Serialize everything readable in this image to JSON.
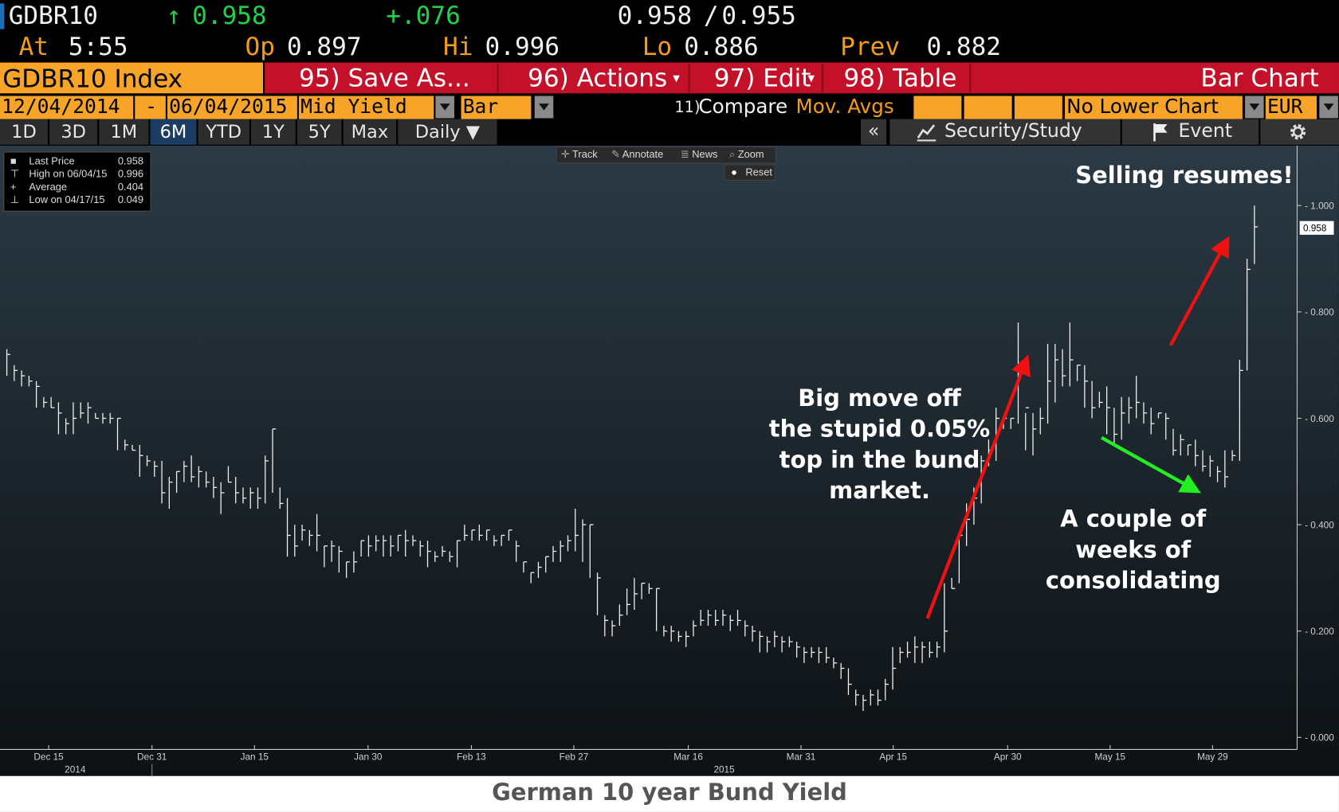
{
  "header": {
    "ticker": "GDBR10",
    "last_arrow": "↑",
    "last": "0.958",
    "change": "+.076",
    "bid_ask_bid": "0.958",
    "bid_ask_sep": "/",
    "bid_ask_ask": "0.955",
    "at_label": "At",
    "at_time": "5:55",
    "op_label": "Op",
    "op_value": "0.897",
    "hi_label": "Hi",
    "hi_value": "0.996",
    "lo_label": "Lo",
    "lo_value": "0.886",
    "prev_label": "Prev",
    "prev_value": "0.882"
  },
  "menu": {
    "security": "GDBR10 Index",
    "save": "95) Save As...",
    "actions": "96) Actions",
    "edit": "97) Edit",
    "table": "98) Table",
    "chart_type_title": "Bar Chart"
  },
  "controls": {
    "start_date": "12/04/2014",
    "dash": "-",
    "end_date": "06/04/2015",
    "field": "Mid Yield",
    "style": "Bar",
    "compare_num": "11)",
    "compare": "Compare",
    "mov_avgs": "Mov. Avgs",
    "lower_chart": "No Lower Chart",
    "currency": "EUR"
  },
  "tabs": [
    "1D",
    "3D",
    "1M",
    "6M",
    "YTD",
    "1Y",
    "5Y",
    "Max",
    "Daily ▼"
  ],
  "toolbar": {
    "collapse": "«",
    "security_study": "Security/Study",
    "event": "Event",
    "track": "Track",
    "annotate": "Annotate",
    "news": "News",
    "zoom": "Zoom",
    "reset": "Reset"
  },
  "legend": {
    "rows": [
      {
        "label": "Last Price",
        "value": "0.958"
      },
      {
        "label": "High on 06/04/15",
        "value": "0.996"
      },
      {
        "label": "Average",
        "value": "0.404"
      },
      {
        "label": "Low on 04/17/15",
        "value": "0.049"
      }
    ]
  },
  "annotations": {
    "big_move": [
      "Big move off",
      "the stupid 0.05%",
      "top in the bund",
      "market."
    ],
    "consolidating": [
      "A couple of",
      "weeks of",
      "consolidating"
    ],
    "selling": "Selling resumes!"
  },
  "caption": "German 10 year Bund Yield",
  "colors": {
    "orange": "#f7a428",
    "red": "#c4112a",
    "green_text": "#22d04a",
    "arrow_red": "#ee1111",
    "arrow_green": "#22ee22"
  },
  "chart_data": {
    "type": "bar",
    "subtype": "ohlc",
    "series_name": "GDBR10 Index",
    "ylim": [
      0,
      1.0
    ],
    "yticks": [
      "1.000",
      "0.800",
      "0.600",
      "0.400",
      "0.200",
      "0.000"
    ],
    "last_price_label": "0.958",
    "xticks": [
      "Dec 15",
      "Dec 31",
      "Jan 15",
      "Jan 30",
      "Feb 13",
      "Feb 27",
      "Mar 16",
      "Mar 31",
      "Apr 15",
      "Apr 30",
      "May 15",
      "May 29"
    ],
    "year_labels": [
      "2014",
      "2015"
    ],
    "bars": [
      [
        0.72,
        0.68,
        0.73
      ],
      [
        0.69,
        0.67,
        0.7
      ],
      [
        0.68,
        0.66,
        0.69
      ],
      [
        0.67,
        0.66,
        0.68
      ],
      [
        0.66,
        0.62,
        0.67
      ],
      [
        0.63,
        0.62,
        0.64
      ],
      [
        0.62,
        0.62,
        0.64
      ],
      [
        0.61,
        0.57,
        0.63
      ],
      [
        0.59,
        0.57,
        0.6
      ],
      [
        0.6,
        0.57,
        0.63
      ],
      [
        0.61,
        0.6,
        0.63
      ],
      [
        0.62,
        0.59,
        0.63
      ],
      [
        0.6,
        0.6,
        0.61
      ],
      [
        0.6,
        0.59,
        0.61
      ],
      [
        0.6,
        0.59,
        0.61
      ],
      [
        0.6,
        0.54,
        0.6
      ],
      [
        0.55,
        0.54,
        0.56
      ],
      [
        0.54,
        0.54,
        0.55
      ],
      [
        0.53,
        0.49,
        0.55
      ],
      [
        0.52,
        0.51,
        0.53
      ],
      [
        0.51,
        0.49,
        0.52
      ],
      [
        0.46,
        0.44,
        0.52
      ],
      [
        0.48,
        0.43,
        0.49
      ],
      [
        0.5,
        0.46,
        0.5
      ],
      [
        0.51,
        0.48,
        0.52
      ],
      [
        0.49,
        0.48,
        0.53
      ],
      [
        0.5,
        0.47,
        0.51
      ],
      [
        0.48,
        0.47,
        0.5
      ],
      [
        0.47,
        0.45,
        0.49
      ],
      [
        0.46,
        0.42,
        0.48
      ],
      [
        0.48,
        0.48,
        0.51
      ],
      [
        0.46,
        0.44,
        0.49
      ],
      [
        0.45,
        0.44,
        0.47
      ],
      [
        0.46,
        0.43,
        0.47
      ],
      [
        0.45,
        0.43,
        0.47
      ],
      [
        0.52,
        0.44,
        0.53
      ],
      [
        0.58,
        0.46,
        0.58
      ],
      [
        0.44,
        0.43,
        0.47
      ],
      [
        0.38,
        0.34,
        0.45
      ],
      [
        0.36,
        0.34,
        0.4
      ],
      [
        0.39,
        0.37,
        0.4
      ],
      [
        0.38,
        0.36,
        0.39
      ],
      [
        0.38,
        0.35,
        0.42
      ],
      [
        0.36,
        0.32,
        0.36
      ],
      [
        0.36,
        0.33,
        0.37
      ],
      [
        0.35,
        0.31,
        0.36
      ],
      [
        0.33,
        0.3,
        0.33
      ],
      [
        0.33,
        0.31,
        0.35
      ],
      [
        0.37,
        0.34,
        0.37
      ],
      [
        0.36,
        0.34,
        0.38
      ],
      [
        0.37,
        0.35,
        0.38
      ],
      [
        0.37,
        0.34,
        0.38
      ],
      [
        0.36,
        0.34,
        0.38
      ],
      [
        0.38,
        0.35,
        0.38
      ],
      [
        0.37,
        0.34,
        0.39
      ],
      [
        0.37,
        0.36,
        0.38
      ],
      [
        0.36,
        0.34,
        0.37
      ],
      [
        0.35,
        0.32,
        0.37
      ],
      [
        0.34,
        0.33,
        0.35
      ],
      [
        0.35,
        0.34,
        0.36
      ],
      [
        0.34,
        0.33,
        0.35
      ],
      [
        0.37,
        0.32,
        0.37
      ],
      [
        0.38,
        0.37,
        0.4
      ],
      [
        0.39,
        0.37,
        0.39
      ],
      [
        0.38,
        0.37,
        0.4
      ],
      [
        0.39,
        0.37,
        0.39
      ],
      [
        0.37,
        0.36,
        0.38
      ],
      [
        0.38,
        0.36,
        0.38
      ],
      [
        0.39,
        0.37,
        0.39
      ],
      [
        0.36,
        0.33,
        0.37
      ],
      [
        0.33,
        0.31,
        0.33
      ],
      [
        0.31,
        0.29,
        0.31
      ],
      [
        0.32,
        0.3,
        0.33
      ],
      [
        0.34,
        0.31,
        0.34
      ],
      [
        0.35,
        0.33,
        0.36
      ],
      [
        0.36,
        0.33,
        0.37
      ],
      [
        0.37,
        0.35,
        0.38
      ],
      [
        0.38,
        0.35,
        0.43
      ],
      [
        0.4,
        0.33,
        0.41
      ],
      [
        0.4,
        0.3,
        0.4
      ],
      [
        0.3,
        0.23,
        0.31
      ],
      [
        0.22,
        0.19,
        0.23
      ],
      [
        0.21,
        0.19,
        0.22
      ],
      [
        0.23,
        0.21,
        0.25
      ],
      [
        0.25,
        0.23,
        0.28
      ],
      [
        0.27,
        0.24,
        0.3
      ],
      [
        0.29,
        0.26,
        0.29
      ],
      [
        0.28,
        0.27,
        0.29
      ],
      [
        0.28,
        0.2,
        0.28
      ],
      [
        0.2,
        0.19,
        0.21
      ],
      [
        0.2,
        0.18,
        0.21
      ],
      [
        0.19,
        0.18,
        0.2
      ],
      [
        0.19,
        0.17,
        0.2
      ],
      [
        0.21,
        0.19,
        0.22
      ],
      [
        0.22,
        0.21,
        0.24
      ],
      [
        0.23,
        0.21,
        0.24
      ],
      [
        0.22,
        0.21,
        0.24
      ],
      [
        0.23,
        0.21,
        0.24
      ],
      [
        0.22,
        0.2,
        0.23
      ],
      [
        0.22,
        0.21,
        0.24
      ],
      [
        0.21,
        0.19,
        0.22
      ],
      [
        0.2,
        0.18,
        0.21
      ],
      [
        0.19,
        0.16,
        0.2
      ],
      [
        0.18,
        0.16,
        0.19
      ],
      [
        0.19,
        0.17,
        0.2
      ],
      [
        0.18,
        0.16,
        0.19
      ],
      [
        0.18,
        0.17,
        0.19
      ],
      [
        0.17,
        0.15,
        0.18
      ],
      [
        0.16,
        0.14,
        0.17
      ],
      [
        0.16,
        0.15,
        0.17
      ],
      [
        0.16,
        0.14,
        0.17
      ],
      [
        0.15,
        0.14,
        0.17
      ],
      [
        0.14,
        0.13,
        0.15
      ],
      [
        0.13,
        0.11,
        0.14
      ],
      [
        0.1,
        0.08,
        0.13
      ],
      [
        0.08,
        0.06,
        0.09
      ],
      [
        0.07,
        0.05,
        0.08
      ],
      [
        0.08,
        0.06,
        0.09
      ],
      [
        0.07,
        0.06,
        0.09
      ],
      [
        0.1,
        0.07,
        0.11
      ],
      [
        0.13,
        0.09,
        0.17
      ],
      [
        0.16,
        0.14,
        0.17
      ],
      [
        0.16,
        0.15,
        0.18
      ],
      [
        0.17,
        0.14,
        0.19
      ],
      [
        0.17,
        0.14,
        0.18
      ],
      [
        0.16,
        0.15,
        0.18
      ],
      [
        0.17,
        0.15,
        0.18
      ],
      [
        0.2,
        0.16,
        0.29
      ],
      [
        0.28,
        0.28,
        0.3
      ],
      [
        0.38,
        0.29,
        0.38
      ],
      [
        0.41,
        0.36,
        0.44
      ],
      [
        0.45,
        0.4,
        0.47
      ],
      [
        0.52,
        0.44,
        0.53
      ],
      [
        0.54,
        0.51,
        0.56
      ],
      [
        0.6,
        0.52,
        0.62
      ],
      [
        0.6,
        0.58,
        0.6
      ],
      [
        0.6,
        0.58,
        0.6
      ],
      [
        0.7,
        0.59,
        0.78
      ],
      [
        0.62,
        0.54,
        0.61
      ],
      [
        0.58,
        0.53,
        0.61
      ],
      [
        0.6,
        0.57,
        0.62
      ],
      [
        0.67,
        0.59,
        0.74
      ],
      [
        0.71,
        0.63,
        0.74
      ],
      [
        0.68,
        0.66,
        0.73
      ],
      [
        0.71,
        0.66,
        0.78
      ],
      [
        0.7,
        0.67,
        0.7
      ],
      [
        0.67,
        0.62,
        0.7
      ],
      [
        0.62,
        0.6,
        0.67
      ],
      [
        0.63,
        0.62,
        0.65
      ],
      [
        0.62,
        0.57,
        0.66
      ],
      [
        0.57,
        0.55,
        0.62
      ],
      [
        0.61,
        0.56,
        0.64
      ],
      [
        0.62,
        0.59,
        0.64
      ],
      [
        0.63,
        0.6,
        0.68
      ],
      [
        0.61,
        0.59,
        0.63
      ],
      [
        0.59,
        0.57,
        0.62
      ],
      [
        0.61,
        0.6,
        0.61
      ],
      [
        0.6,
        0.56,
        0.61
      ],
      [
        0.54,
        0.53,
        0.58
      ],
      [
        0.56,
        0.53,
        0.57
      ],
      [
        0.55,
        0.53,
        0.55
      ],
      [
        0.53,
        0.51,
        0.56
      ],
      [
        0.51,
        0.5,
        0.54
      ],
      [
        0.52,
        0.49,
        0.53
      ],
      [
        0.5,
        0.48,
        0.51
      ],
      [
        0.49,
        0.47,
        0.54
      ],
      [
        0.53,
        0.52,
        0.54
      ],
      [
        0.69,
        0.52,
        0.71
      ],
      [
        0.88,
        0.69,
        0.9
      ],
      [
        0.96,
        0.89,
        1.0
      ]
    ]
  }
}
